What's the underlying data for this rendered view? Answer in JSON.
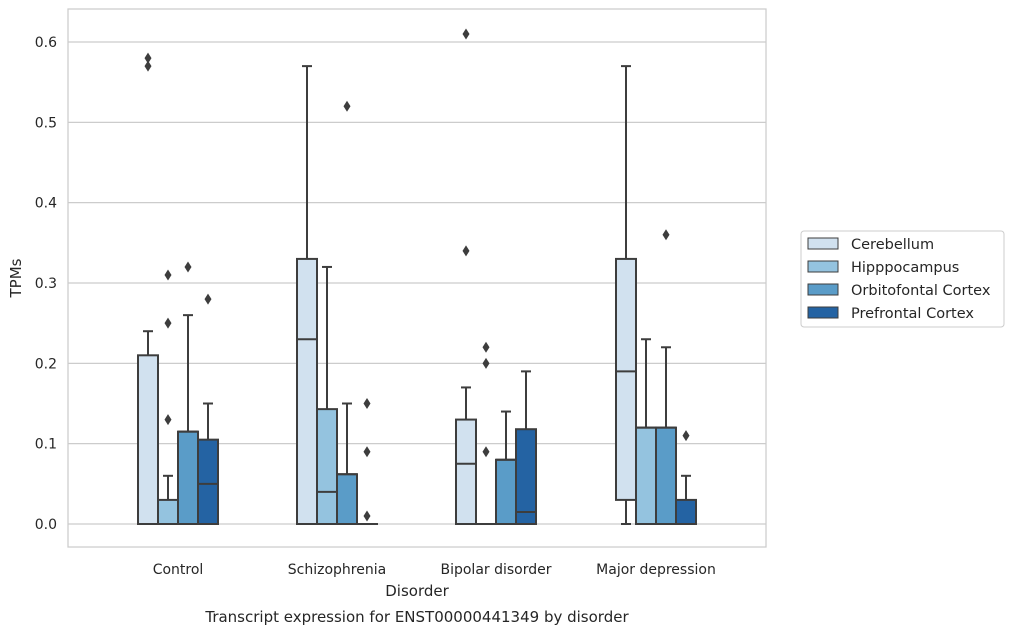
{
  "chart_data": {
    "type": "box",
    "caption": "Transcript expression for ENST00000441349 by disorder",
    "xlabel": "Disorder",
    "ylabel": "TPMs",
    "ylim": [
      -0.03,
      0.64
    ],
    "yticks": [
      0.0,
      0.1,
      0.2,
      0.3,
      0.4,
      0.5,
      0.6
    ],
    "ytick_labels": [
      "0.0",
      "0.1",
      "0.2",
      "0.3",
      "0.4",
      "0.5",
      "0.6"
    ],
    "grid": "horizontal",
    "legend_position": "right",
    "categories": [
      "Control",
      "Schizophrenia",
      "Bipolar disorder",
      "Major depression"
    ],
    "series": [
      {
        "name": "Cerebellum",
        "color": "#d1e1ef",
        "boxes": [
          {
            "q1": 0.0,
            "median": 0.0,
            "q3": 0.21,
            "whisker_low": 0.0,
            "whisker_high": 0.24,
            "outliers": [
              0.57,
              0.58
            ]
          },
          {
            "q1": 0.0,
            "median": 0.23,
            "q3": 0.33,
            "whisker_low": 0.0,
            "whisker_high": 0.57,
            "outliers": []
          },
          {
            "q1": 0.0,
            "median": 0.075,
            "q3": 0.13,
            "whisker_low": 0.0,
            "whisker_high": 0.17,
            "outliers": [
              0.34,
              0.61
            ]
          },
          {
            "q1": 0.03,
            "median": 0.19,
            "q3": 0.33,
            "whisker_low": 0.0,
            "whisker_high": 0.57,
            "outliers": []
          }
        ]
      },
      {
        "name": "Hipppocampus",
        "color": "#94c3df",
        "boxes": [
          {
            "q1": 0.0,
            "median": 0.0,
            "q3": 0.03,
            "whisker_low": 0.0,
            "whisker_high": 0.06,
            "outliers": [
              0.13,
              0.25,
              0.31
            ]
          },
          {
            "q1": 0.0,
            "median": 0.04,
            "q3": 0.143,
            "whisker_low": 0.0,
            "whisker_high": 0.32,
            "outliers": []
          },
          {
            "q1": 0.0,
            "median": 0.0,
            "q3": 0.0,
            "whisker_low": 0.0,
            "whisker_high": 0.0,
            "outliers": [
              0.09,
              0.2,
              0.22
            ]
          },
          {
            "q1": 0.0,
            "median": 0.12,
            "q3": 0.12,
            "whisker_low": 0.0,
            "whisker_high": 0.23,
            "outliers": []
          }
        ]
      },
      {
        "name": "Orbitofontal Cortex",
        "color": "#5a9cc8",
        "boxes": [
          {
            "q1": 0.0,
            "median": 0.115,
            "q3": 0.115,
            "whisker_low": 0.0,
            "whisker_high": 0.26,
            "outliers": [
              0.32
            ]
          },
          {
            "q1": 0.0,
            "median": 0.062,
            "q3": 0.062,
            "whisker_low": 0.0,
            "whisker_high": 0.15,
            "outliers": [
              0.52
            ]
          },
          {
            "q1": 0.0,
            "median": 0.08,
            "q3": 0.08,
            "whisker_low": 0.0,
            "whisker_high": 0.14,
            "outliers": []
          },
          {
            "q1": 0.0,
            "median": 0.12,
            "q3": 0.12,
            "whisker_low": 0.0,
            "whisker_high": 0.22,
            "outliers": [
              0.36
            ]
          }
        ]
      },
      {
        "name": "Prefrontal Cortex",
        "color": "#2463a3",
        "boxes": [
          {
            "q1": 0.0,
            "median": 0.05,
            "q3": 0.105,
            "whisker_low": 0.0,
            "whisker_high": 0.15,
            "outliers": [
              0.28
            ]
          },
          {
            "q1": 0.0,
            "median": 0.0,
            "q3": 0.0,
            "whisker_low": 0.0,
            "whisker_high": 0.0,
            "outliers": [
              0.01,
              0.09,
              0.15
            ]
          },
          {
            "q1": 0.0,
            "median": 0.015,
            "q3": 0.118,
            "whisker_low": 0.0,
            "whisker_high": 0.19,
            "outliers": []
          },
          {
            "q1": 0.0,
            "median": 0.0,
            "q3": 0.03,
            "whisker_low": 0.0,
            "whisker_high": 0.06,
            "outliers": [
              0.11
            ]
          }
        ]
      }
    ]
  }
}
